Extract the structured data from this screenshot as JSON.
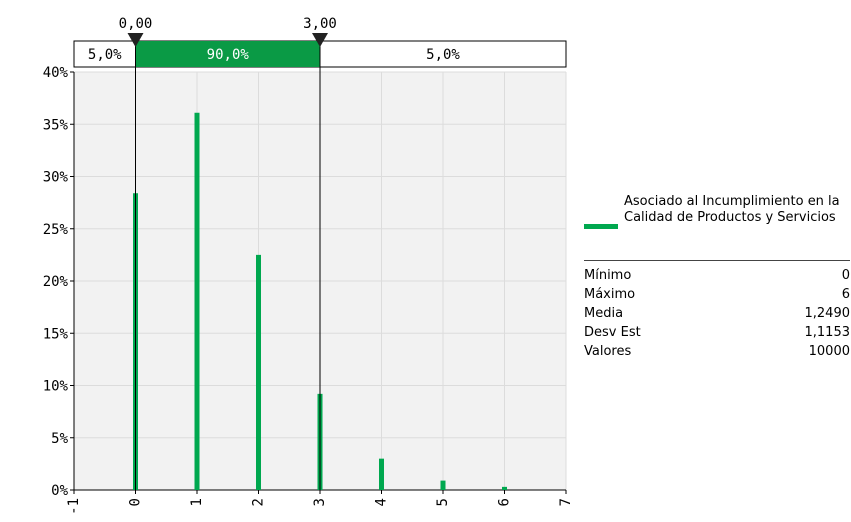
{
  "colors": {
    "bar": "#00a84f",
    "bar_dark": "#0f5f2c",
    "band_fill": "#0a9a45",
    "grid": "#dcdcdc",
    "plot_bg": "#f2f2f2"
  },
  "chart_data": {
    "type": "bar",
    "x": [
      0,
      1,
      2,
      3,
      4,
      5,
      6
    ],
    "values": [
      28.4,
      36.1,
      22.5,
      9.2,
      3.0,
      0.9,
      0.3
    ],
    "xlim": [
      -1,
      7
    ],
    "ylim": [
      0,
      40
    ],
    "x_tick_labels": [
      "-1",
      "0",
      "1",
      "2",
      "3",
      "4",
      "5",
      "6",
      "7"
    ],
    "y_tick_labels": [
      "0%",
      "5%",
      "10%",
      "15%",
      "20%",
      "25%",
      "30%",
      "35%",
      "40%"
    ],
    "grid": true,
    "markers": [
      {
        "value": 0,
        "label": "0,00"
      },
      {
        "value": 3,
        "label": "3,00"
      }
    ],
    "bands": [
      {
        "from": -1,
        "to": 0,
        "label": "5,0%"
      },
      {
        "from": 0,
        "to": 3,
        "label": "90,0%"
      },
      {
        "from": 3,
        "to": 7,
        "label": "5,0%"
      }
    ],
    "series": [
      {
        "name": "Asociado al Incumplimiento en la Calidad de Productos y Servicios"
      }
    ]
  },
  "legend": {
    "label": "Asociado al Incumplimiento en la Calidad de Productos y Servicios"
  },
  "stats": [
    {
      "label": "Mínimo",
      "value": "0"
    },
    {
      "label": "Máximo",
      "value": "6"
    },
    {
      "label": "Media",
      "value": "1,2490"
    },
    {
      "label": "Desv Est",
      "value": "1,1153"
    },
    {
      "label": "Valores",
      "value": "10000"
    }
  ]
}
